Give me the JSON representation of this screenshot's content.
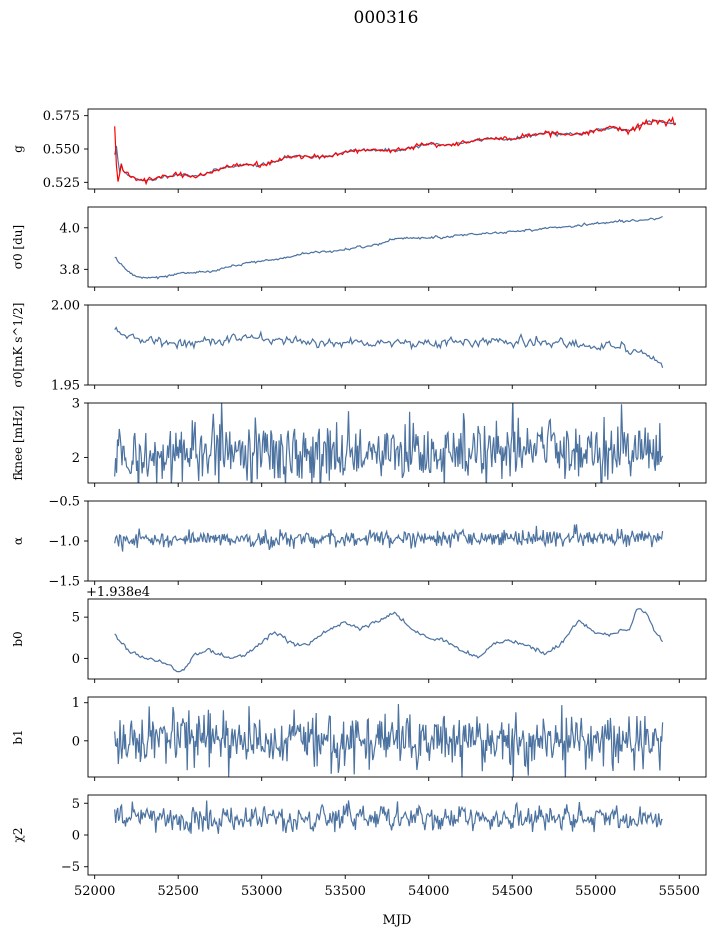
{
  "figure": {
    "title": "000316",
    "xlabel": "MJD",
    "xticks": [
      "52000",
      "52500",
      "53000",
      "53500",
      "54000",
      "54500",
      "55000",
      "55500"
    ]
  },
  "colors": {
    "series": "#4c72a0",
    "fit": "#ff0000"
  },
  "chart_data": [
    {
      "type": "line",
      "id": "g",
      "ylabel": "g",
      "yticks": [
        "0.525",
        "0.550",
        "0.575"
      ],
      "ylim": [
        0.52,
        0.58
      ],
      "xlim": [
        51960,
        55660
      ],
      "series": [
        {
          "values": [
            [
              52120,
              0.548
            ],
            [
              52135,
              0.538
            ],
            [
              52160,
              0.535
            ],
            [
              52200,
              0.531
            ],
            [
              52250,
              0.527
            ],
            [
              52300,
              0.526
            ],
            [
              52350,
              0.527
            ],
            [
              52400,
              0.529
            ],
            [
              52500,
              0.531
            ],
            [
              52600,
              0.53
            ],
            [
              52650,
              0.531
            ],
            [
              52700,
              0.533
            ],
            [
              52800,
              0.537
            ],
            [
              52900,
              0.538
            ],
            [
              53000,
              0.538
            ],
            [
              53100,
              0.541
            ],
            [
              53150,
              0.544
            ],
            [
              53250,
              0.545
            ],
            [
              53350,
              0.544
            ],
            [
              53450,
              0.546
            ],
            [
              53550,
              0.549
            ],
            [
              53700,
              0.549
            ],
            [
              53800,
              0.549
            ],
            [
              53900,
              0.551
            ],
            [
              54000,
              0.554
            ],
            [
              54100,
              0.553
            ],
            [
              54200,
              0.554
            ],
            [
              54300,
              0.557
            ],
            [
              54400,
              0.558
            ],
            [
              54500,
              0.557
            ],
            [
              54600,
              0.56
            ],
            [
              54700,
              0.562
            ],
            [
              54800,
              0.561
            ],
            [
              54900,
              0.561
            ],
            [
              55000,
              0.564
            ],
            [
              55100,
              0.566
            ],
            [
              55150,
              0.565
            ],
            [
              55200,
              0.564
            ],
            [
              55250,
              0.566
            ],
            [
              55300,
              0.57
            ],
            [
              55350,
              0.571
            ],
            [
              55400,
              0.57
            ],
            [
              55480,
              0.569
            ]
          ]
        },
        {
          "values": [
            [
              52120,
              0.549
            ],
            [
              52135,
              0.539
            ],
            [
              52160,
              0.535
            ],
            [
              52200,
              0.531
            ],
            [
              52250,
              0.527
            ],
            [
              52300,
              0.526
            ],
            [
              52350,
              0.527
            ],
            [
              52400,
              0.529
            ],
            [
              52500,
              0.531
            ],
            [
              52600,
              0.53
            ],
            [
              52650,
              0.531
            ],
            [
              52700,
              0.533
            ],
            [
              52800,
              0.537
            ],
            [
              52900,
              0.538
            ],
            [
              53000,
              0.538
            ],
            [
              53100,
              0.541
            ],
            [
              53150,
              0.544
            ],
            [
              53250,
              0.545
            ],
            [
              53350,
              0.544
            ],
            [
              53450,
              0.546
            ],
            [
              53550,
              0.549
            ],
            [
              53700,
              0.549
            ],
            [
              53800,
              0.549
            ],
            [
              53900,
              0.551
            ],
            [
              54000,
              0.554
            ],
            [
              54100,
              0.553
            ],
            [
              54200,
              0.554
            ],
            [
              54300,
              0.557
            ],
            [
              54400,
              0.558
            ],
            [
              54500,
              0.557
            ],
            [
              54600,
              0.56
            ],
            [
              54700,
              0.562
            ],
            [
              54800,
              0.561
            ],
            [
              54900,
              0.561
            ],
            [
              55000,
              0.564
            ],
            [
              55100,
              0.566
            ],
            [
              55150,
              0.565
            ],
            [
              55200,
              0.564
            ],
            [
              55250,
              0.566
            ],
            [
              55300,
              0.57
            ],
            [
              55350,
              0.571
            ],
            [
              55400,
              0.57
            ],
            [
              55480,
              0.569
            ]
          ]
        }
      ]
    },
    {
      "type": "line",
      "id": "sigma0_du",
      "ylabel": "σ0 [du]",
      "yticks": [
        "3.8",
        "4.0"
      ],
      "ylim": [
        3.715,
        4.1
      ],
      "xlim": [
        51960,
        55660
      ],
      "series": [
        {
          "values": [
            [
              52120,
              3.86
            ],
            [
              52150,
              3.83
            ],
            [
              52200,
              3.79
            ],
            [
              52250,
              3.765
            ],
            [
              52300,
              3.76
            ],
            [
              52400,
              3.765
            ],
            [
              52500,
              3.78
            ],
            [
              52700,
              3.79
            ],
            [
              52800,
              3.81
            ],
            [
              52900,
              3.83
            ],
            [
              53100,
              3.85
            ],
            [
              53300,
              3.88
            ],
            [
              53500,
              3.895
            ],
            [
              53700,
              3.92
            ],
            [
              53800,
              3.95
            ],
            [
              54000,
              3.95
            ],
            [
              54200,
              3.965
            ],
            [
              54400,
              3.975
            ],
            [
              54600,
              3.99
            ],
            [
              54800,
              4.005
            ],
            [
              54900,
              4.01
            ],
            [
              55000,
              4.02
            ],
            [
              55200,
              4.035
            ],
            [
              55300,
              4.035
            ],
            [
              55400,
              4.05
            ]
          ]
        }
      ]
    },
    {
      "type": "line",
      "id": "sigma0_mk",
      "ylabel": "σ0[mK s^1/2]",
      "yticks": [
        "1.95",
        "2.00"
      ],
      "ylim": [
        1.95,
        2.0
      ],
      "xlim": [
        51960,
        55660
      ],
      "series": [
        {
          "values": [
            [
              52120,
              1.987
            ],
            [
              52200,
              1.98
            ],
            [
              52400,
              1.976
            ],
            [
              52600,
              1.977
            ],
            [
              52800,
              1.978
            ],
            [
              53000,
              1.979
            ],
            [
              53200,
              1.977
            ],
            [
              53400,
              1.976
            ],
            [
              53600,
              1.977
            ],
            [
              53800,
              1.977
            ],
            [
              54000,
              1.976
            ],
            [
              54200,
              1.977
            ],
            [
              54400,
              1.977
            ],
            [
              54600,
              1.976
            ],
            [
              54800,
              1.976
            ],
            [
              55000,
              1.975
            ],
            [
              55200,
              1.972
            ],
            [
              55300,
              1.969
            ],
            [
              55400,
              1.964
            ]
          ]
        }
      ]
    },
    {
      "type": "line",
      "id": "fknee",
      "ylabel": "fknee [mHz]",
      "yticks": [
        "2",
        "3"
      ],
      "ylim": [
        1.53,
        3.0
      ],
      "xlim": [
        51960,
        55660
      ],
      "series": [
        {
          "values": [
            [
              52120,
              2.1
            ],
            [
              55400,
              2.1
            ]
          ]
        }
      ]
    },
    {
      "type": "line",
      "id": "alpha",
      "ylabel": "α",
      "yticks": [
        "−1.5",
        "−1.0",
        "−0.5"
      ],
      "ylim": [
        -1.5,
        -0.5
      ],
      "xlim": [
        51960,
        55660
      ],
      "series": [
        {
          "values": [
            [
              52120,
              -0.975
            ],
            [
              55400,
              -0.955
            ]
          ]
        }
      ]
    },
    {
      "type": "line",
      "id": "b0",
      "ylabel": "b0",
      "offset_label": "+1.938e4",
      "yticks": [
        "0",
        "5"
      ],
      "ylim": [
        -2.5,
        7.2
      ],
      "xlim": [
        51960,
        55660
      ],
      "series": [
        {
          "values": [
            [
              52120,
              3.0
            ],
            [
              52200,
              1.0
            ],
            [
              52300,
              0.0
            ],
            [
              52400,
              -0.5
            ],
            [
              52450,
              -1.0
            ],
            [
              52500,
              -1.5
            ],
            [
              52550,
              -1.2
            ],
            [
              52600,
              0.5
            ],
            [
              52700,
              1.0
            ],
            [
              52800,
              0.0
            ],
            [
              52900,
              0.5
            ],
            [
              53000,
              2.0
            ],
            [
              53050,
              3.0
            ],
            [
              53100,
              3.0
            ],
            [
              53200,
              1.5
            ],
            [
              53300,
              2.0
            ],
            [
              53400,
              3.5
            ],
            [
              53500,
              4.5
            ],
            [
              53600,
              3.5
            ],
            [
              53700,
              4.5
            ],
            [
              53800,
              5.5
            ],
            [
              53900,
              3.5
            ],
            [
              54000,
              2.5
            ],
            [
              54100,
              2.0
            ],
            [
              54200,
              1.0
            ],
            [
              54300,
              0.0
            ],
            [
              54400,
              2.0
            ],
            [
              54500,
              2.0
            ],
            [
              54600,
              1.5
            ],
            [
              54700,
              0.5
            ],
            [
              54800,
              2.0
            ],
            [
              54900,
              4.5
            ],
            [
              55000,
              3.0
            ],
            [
              55100,
              3.0
            ],
            [
              55200,
              3.5
            ],
            [
              55250,
              6.0
            ],
            [
              55300,
              5.5
            ],
            [
              55350,
              3.5
            ],
            [
              55400,
              2.0
            ]
          ]
        }
      ]
    },
    {
      "type": "line",
      "id": "b1",
      "ylabel": "b1",
      "yticks": [
        "0",
        "1"
      ],
      "ylim": [
        -0.95,
        1.15
      ],
      "xlim": [
        51960,
        55660
      ],
      "series": [
        {
          "values": [
            [
              52120,
              0.0
            ],
            [
              55400,
              0.0
            ]
          ]
        }
      ]
    },
    {
      "type": "line",
      "id": "chi2",
      "ylabel": "χ2",
      "yticks": [
        "−5",
        "0",
        "5"
      ],
      "ylim": [
        -6.3,
        6.3
      ],
      "xlim": [
        51960,
        55660
      ],
      "series": [
        {
          "values": [
            [
              52120,
              2.6
            ],
            [
              55400,
              2.6
            ]
          ]
        }
      ]
    }
  ]
}
